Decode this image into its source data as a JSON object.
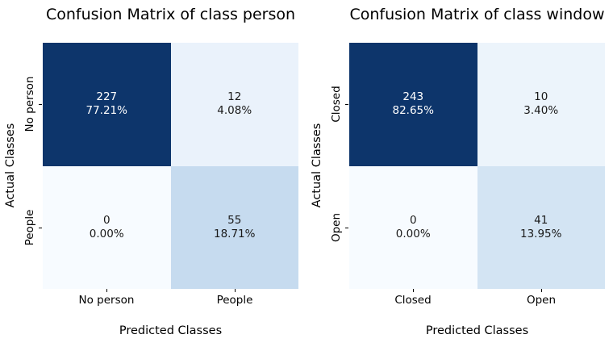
{
  "figure": {
    "background_color": "#ffffff",
    "colormap": "Blues",
    "dark_cell_color": "#0d356b",
    "dark_cell_text_color": "#ffffff",
    "light_cell_text_color": "#1a1a1a"
  },
  "chart_data": [
    {
      "type": "heatmap",
      "title": "Confusion Matrix of class person",
      "xlabel": "Predicted Classes",
      "ylabel": "Actual Classes",
      "x_categories": [
        "No person",
        "People"
      ],
      "y_categories": [
        "No person",
        "People"
      ],
      "legend": "none",
      "grid": "off",
      "cells": [
        {
          "row": "No person",
          "col": "No person",
          "count": "227",
          "percent": "77.21%",
          "value": 227,
          "fraction": 0.7721,
          "bg": "#0d356b",
          "text_color": "#ffffff"
        },
        {
          "row": "No person",
          "col": "People",
          "count": "12",
          "percent": "4.08%",
          "value": 12,
          "fraction": 0.0408,
          "bg": "#eaf2fb",
          "text_color": "#1a1a1a"
        },
        {
          "row": "People",
          "col": "No person",
          "count": "0",
          "percent": "0.00%",
          "value": 0,
          "fraction": 0.0,
          "bg": "#f7fbff",
          "text_color": "#1a1a1a"
        },
        {
          "row": "People",
          "col": "People",
          "count": "55",
          "percent": "18.71%",
          "value": 55,
          "fraction": 0.1871,
          "bg": "#c6dbef",
          "text_color": "#1a1a1a"
        }
      ]
    },
    {
      "type": "heatmap",
      "title": "Confusion Matrix of class window",
      "xlabel": "Predicted Classes",
      "ylabel": "Actual Classes",
      "x_categories": [
        "Closed",
        "Open"
      ],
      "y_categories": [
        "Closed",
        "Open"
      ],
      "legend": "none",
      "grid": "off",
      "cells": [
        {
          "row": "Closed",
          "col": "Closed",
          "count": "243",
          "percent": "82.65%",
          "value": 243,
          "fraction": 0.8265,
          "bg": "#0d356b",
          "text_color": "#ffffff"
        },
        {
          "row": "Closed",
          "col": "Open",
          "count": "10",
          "percent": "3.40%",
          "value": 10,
          "fraction": 0.034,
          "bg": "#ecf4fb",
          "text_color": "#1a1a1a"
        },
        {
          "row": "Open",
          "col": "Closed",
          "count": "0",
          "percent": "0.00%",
          "value": 0,
          "fraction": 0.0,
          "bg": "#f7fbff",
          "text_color": "#1a1a1a"
        },
        {
          "row": "Open",
          "col": "Open",
          "count": "41",
          "percent": "13.95%",
          "value": 41,
          "fraction": 0.1395,
          "bg": "#d3e4f3",
          "text_color": "#1a1a1a"
        }
      ]
    }
  ]
}
